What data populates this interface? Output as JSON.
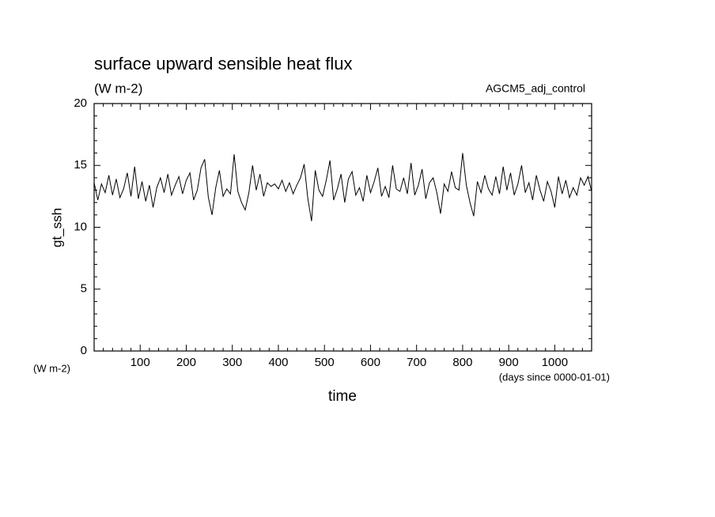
{
  "chart_data": {
    "type": "line",
    "title": "surface upward sensible heat flux",
    "subtitle": "(W m-2)",
    "annotation": "AGCM5_adj_control",
    "y_label": "gt_ssh",
    "y_unit": "(W m-2)",
    "x_label": "time",
    "x_unit": "(days since 0000-01-01)",
    "xlim": [
      0,
      1080
    ],
    "ylim": [
      0,
      20
    ],
    "xticks": [
      100,
      200,
      300,
      400,
      500,
      600,
      700,
      800,
      900,
      1000
    ],
    "yticks": [
      0,
      5,
      10,
      15,
      20
    ],
    "xminorticks": [
      20,
      40,
      60,
      80,
      120,
      140,
      160,
      180,
      220,
      240,
      260,
      280,
      320,
      340,
      360,
      380,
      420,
      440,
      460,
      480,
      520,
      540,
      560,
      580,
      620,
      640,
      660,
      680,
      720,
      740,
      760,
      780,
      820,
      840,
      860,
      880,
      920,
      940,
      960,
      980,
      1020,
      1040,
      1060
    ],
    "yminorticks": [
      1,
      2,
      3,
      4,
      6,
      7,
      8,
      9,
      11,
      12,
      13,
      14,
      16,
      17,
      18,
      19
    ],
    "series": [
      {
        "color": "#000000",
        "x": [
          0,
          8,
          16,
          24,
          32,
          40,
          48,
          56,
          64,
          72,
          80,
          88,
          96,
          104,
          112,
          120,
          128,
          136,
          144,
          152,
          160,
          168,
          176,
          184,
          192,
          200,
          208,
          216,
          224,
          232,
          240,
          248,
          256,
          264,
          272,
          280,
          288,
          296,
          304,
          312,
          320,
          328,
          336,
          344,
          352,
          360,
          368,
          376,
          384,
          392,
          400,
          408,
          416,
          424,
          432,
          440,
          448,
          456,
          464,
          472,
          480,
          488,
          496,
          504,
          512,
          520,
          528,
          536,
          544,
          552,
          560,
          568,
          576,
          584,
          592,
          600,
          608,
          616,
          624,
          632,
          640,
          648,
          656,
          664,
          672,
          680,
          688,
          696,
          704,
          712,
          720,
          728,
          736,
          744,
          752,
          760,
          768,
          776,
          784,
          792,
          800,
          808,
          816,
          824,
          832,
          840,
          848,
          856,
          864,
          872,
          880,
          888,
          896,
          904,
          912,
          920,
          928,
          936,
          944,
          952,
          960,
          968,
          976,
          984,
          992,
          1000,
          1008,
          1016,
          1024,
          1032,
          1040,
          1048,
          1056,
          1064,
          1072,
          1080
        ],
        "values": [
          13.6,
          12.2,
          13.5,
          12.8,
          14.2,
          12.6,
          13.9,
          12.4,
          13.1,
          14.4,
          12.5,
          14.9,
          12.3,
          13.7,
          12.1,
          13.4,
          11.6,
          13.2,
          14.0,
          12.8,
          14.3,
          12.6,
          13.4,
          14.1,
          12.7,
          13.8,
          14.4,
          12.2,
          13.0,
          14.8,
          15.5,
          12.4,
          11.0,
          13.2,
          14.6,
          12.5,
          13.1,
          12.7,
          15.9,
          12.9,
          12.0,
          11.4,
          12.8,
          15.0,
          13.0,
          14.3,
          12.5,
          13.6,
          13.3,
          13.5,
          13.1,
          13.8,
          12.9,
          13.6,
          12.7,
          13.4,
          14.0,
          15.1,
          12.3,
          10.5,
          14.6,
          13.0,
          12.5,
          13.8,
          15.4,
          12.2,
          13.1,
          14.3,
          12.0,
          13.9,
          14.5,
          12.6,
          13.2,
          12.1,
          14.2,
          12.8,
          13.7,
          14.8,
          12.5,
          13.3,
          12.4,
          15.0,
          13.1,
          12.9,
          14.0,
          12.7,
          15.2,
          12.6,
          13.4,
          14.7,
          12.3,
          13.6,
          14.0,
          12.8,
          11.1,
          13.5,
          12.9,
          14.5,
          13.2,
          13.0,
          16.0,
          13.4,
          12.0,
          10.9,
          13.7,
          12.8,
          14.2,
          13.1,
          12.6,
          14.1,
          12.7,
          14.9,
          13.0,
          14.4,
          12.6,
          13.5,
          15.0,
          12.8,
          13.6,
          12.2,
          14.2,
          13.0,
          12.1,
          13.7,
          12.9,
          11.6,
          14.1,
          12.7,
          13.8,
          12.4,
          13.2,
          12.6,
          14.0,
          13.4,
          14.1,
          12.9
        ]
      }
    ]
  }
}
